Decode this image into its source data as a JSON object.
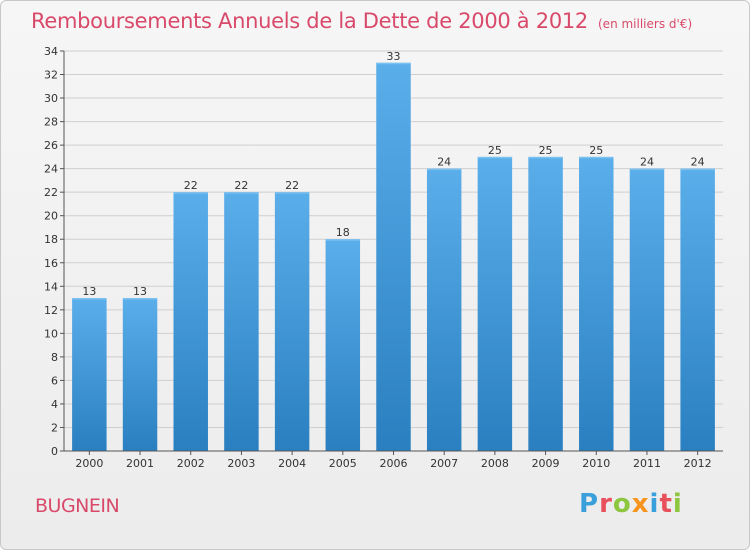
{
  "title": "Remboursements Annuels de la Dette de 2000 à 2012",
  "subtitle": "(en milliers d'€)",
  "town": "BUGNEIN",
  "logo": {
    "text": "Proxiti",
    "letters": [
      {
        "char": "P",
        "color": "#3aa0dc"
      },
      {
        "char": "r",
        "color": "#e8505b"
      },
      {
        "char": "o",
        "color": "#8dc63f"
      },
      {
        "char": "x",
        "color": "#f7941d"
      },
      {
        "char": "i",
        "color": "#3aa0dc"
      },
      {
        "char": "t",
        "color": "#e8505b"
      },
      {
        "char": "i",
        "color": "#8dc63f"
      }
    ]
  },
  "colors": {
    "bar_top": "#5aaeea",
    "bar_bottom": "#2a7fc0",
    "title": "#d94a6a",
    "grid": "#cfcfcf"
  },
  "chart_data": {
    "type": "bar",
    "title": "Remboursements Annuels de la Dette de 2000 à 2012",
    "subtitle": "(en milliers d'€)",
    "categories": [
      "2000",
      "2001",
      "2002",
      "2003",
      "2004",
      "2005",
      "2006",
      "2007",
      "2008",
      "2009",
      "2010",
      "2011",
      "2012"
    ],
    "values": [
      13,
      13,
      22,
      22,
      22,
      18,
      33,
      24,
      25,
      25,
      25,
      24,
      24
    ],
    "ylim": [
      0,
      34
    ],
    "yticks": [
      0,
      2,
      4,
      6,
      8,
      10,
      12,
      14,
      16,
      18,
      20,
      22,
      24,
      26,
      28,
      30,
      32,
      34
    ],
    "grid": true,
    "xlabel": "",
    "ylabel": ""
  }
}
